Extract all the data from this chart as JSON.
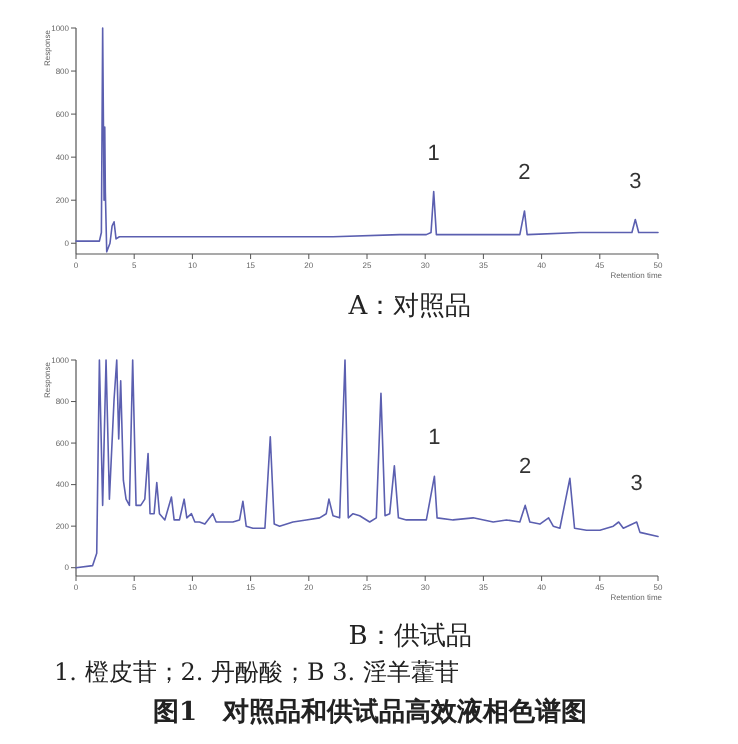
{
  "chart_data": [
    {
      "type": "line",
      "title": "A：对照品",
      "xlabel": "Retention time",
      "ylabel": "Response",
      "xlim": [
        0,
        50
      ],
      "xticks": [
        0,
        5,
        10,
        15,
        20,
        25,
        30,
        35,
        40,
        45,
        50
      ],
      "ylim": [
        -50,
        1000
      ],
      "yticks": [
        0,
        200,
        400,
        600,
        800,
        1000
      ],
      "x": [
        0,
        2.01,
        2.18,
        2.29,
        2.41,
        2.47,
        2.52,
        2.64,
        2.92,
        3.1,
        3.27,
        3.44,
        3.73,
        4.87,
        10.61,
        16.34,
        22.08,
        27.81,
        30.1,
        30.5,
        30.73,
        30.96,
        33.54,
        38.13,
        38.53,
        38.76,
        43.29,
        47.76,
        48.05,
        48.34,
        50
      ],
      "series": [
        {
          "color": "#5b5fb0",
          "values": [
            10,
            10,
            50,
            1000,
            200,
            540,
            240,
            -40,
            0,
            80,
            100,
            20,
            30,
            30,
            30,
            30,
            30,
            40,
            40,
            50,
            240,
            40,
            40,
            40,
            150,
            40,
            50,
            50,
            110,
            50,
            50
          ]
        }
      ],
      "annotations": [
        {
          "text": "1",
          "x": 30.73,
          "y": 240
        },
        {
          "text": "2",
          "x": 38.53,
          "y": 150
        },
        {
          "text": "3",
          "x": 48.05,
          "y": 110
        }
      ]
    },
    {
      "type": "line",
      "title": "B：供试品",
      "xlabel": "Retention time",
      "ylabel": "Response",
      "xlim": [
        0,
        50
      ],
      "xticks": [
        0,
        5,
        10,
        15,
        20,
        25,
        30,
        35,
        40,
        45,
        50
      ],
      "ylim": [
        -40,
        1000
      ],
      "yticks": [
        0,
        200,
        400,
        600,
        800,
        1000
      ],
      "x": [
        0,
        1.43,
        1.78,
        2.01,
        2.29,
        2.58,
        2.87,
        3.27,
        3.5,
        3.67,
        3.84,
        4.07,
        4.3,
        4.59,
        4.87,
        5.16,
        5.56,
        5.91,
        6.19,
        6.36,
        6.71,
        6.94,
        7.17,
        7.63,
        8.2,
        8.43,
        8.89,
        9.29,
        9.52,
        9.92,
        10.21,
        10.61,
        11.07,
        11.75,
        12.04,
        12.61,
        13.48,
        14.05,
        14.34,
        14.62,
        15.2,
        16.23,
        16.69,
        17.03,
        17.49,
        18.64,
        19.78,
        20.93,
        21.5,
        21.73,
        22.08,
        22.65,
        23.11,
        23.39,
        23.8,
        24.37,
        25.23,
        25.8,
        26.2,
        26.55,
        26.95,
        27.35,
        27.7,
        28.38,
        30.1,
        30.79,
        31.02,
        32.4,
        34.12,
        35.84,
        36.98,
        38.13,
        38.59,
        38.99,
        39.85,
        40.6,
        41,
        41.57,
        42.43,
        42.83,
        43.86,
        45.01,
        46.16,
        46.62,
        47.02,
        48.17,
        48.45,
        50
      ],
      "series": [
        {
          "color": "#5b5fb0",
          "values": [
            0,
            10,
            70,
            1000,
            300,
            1000,
            330,
            810,
            1000,
            620,
            900,
            420,
            330,
            300,
            1000,
            300,
            300,
            330,
            550,
            260,
            260,
            410,
            260,
            230,
            340,
            230,
            230,
            330,
            240,
            260,
            220,
            220,
            210,
            260,
            220,
            220,
            220,
            230,
            320,
            200,
            190,
            190,
            630,
            210,
            200,
            220,
            230,
            240,
            260,
            330,
            250,
            240,
            1000,
            240,
            260,
            250,
            220,
            240,
            840,
            250,
            260,
            490,
            240,
            230,
            230,
            440,
            240,
            230,
            240,
            220,
            230,
            220,
            300,
            220,
            210,
            240,
            200,
            190,
            430,
            190,
            180,
            180,
            200,
            220,
            190,
            220,
            170,
            150
          ]
        }
      ],
      "annotations": [
        {
          "text": "1",
          "x": 30.79,
          "y": 440
        },
        {
          "text": "2",
          "x": 38.59,
          "y": 300
        },
        {
          "text": "3",
          "x": 48.17,
          "y": 220
        },
        "1. 橙皮苷；2. 丹酚酸；B 3. 淫羊藿苷",
        "图1　对照品和供试品高效液相色谱图"
      ]
    }
  ]
}
